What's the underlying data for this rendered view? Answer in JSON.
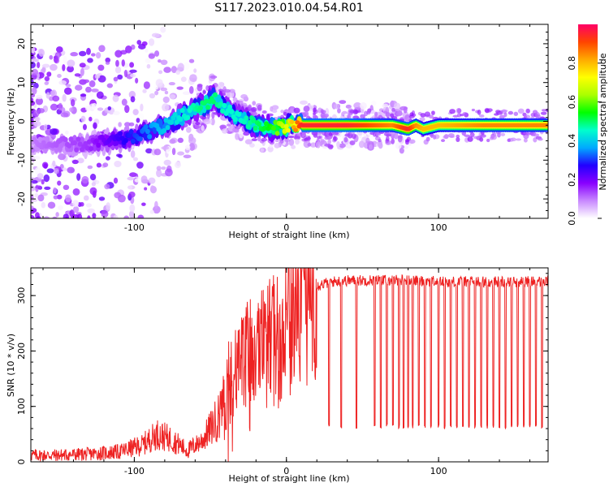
{
  "figure": {
    "title": "S117.2023.010.04.54.R01"
  },
  "chart_data": [
    {
      "type": "heatmap",
      "xlabel": "Height of straight line (km)",
      "ylabel": "Frequency (Hz)",
      "xlim": [
        -168,
        172
      ],
      "ylim": [
        -25,
        25
      ],
      "x_ticks": [
        "-100",
        "0",
        "100"
      ],
      "y_ticks": [
        "-20",
        "-10",
        "0",
        "10",
        "20"
      ],
      "colorbar": {
        "label": "Normalized spectral amplitude",
        "range": [
          0.0,
          1.0
        ],
        "ticks": [
          "0.0",
          "0.2",
          "0.4",
          "0.6",
          "0.8"
        ],
        "colors": [
          "#ffffff",
          "#c888ff",
          "#8800ff",
          "#2200ff",
          "#00aaff",
          "#00ffcc",
          "#00ff00",
          "#aaff00",
          "#ffff00",
          "#ffaa00",
          "#ff4400",
          "#ff0066"
        ]
      },
      "ridge": {
        "description_x": [
          -168,
          -130,
          -100,
          -80,
          -65,
          -55,
          -48,
          -40,
          -30,
          -20,
          -10,
          0,
          10,
          40,
          70,
          80,
          85,
          90,
          100,
          130,
          172
        ],
        "description_f": [
          -6,
          -6,
          -4,
          -1,
          2,
          4,
          6,
          3,
          1,
          -1,
          -2,
          -1,
          -1,
          -1,
          -1,
          -2,
          -1,
          -2,
          -1,
          -1,
          -1
        ],
        "peak_amplitude": [
          0.1,
          0.15,
          0.3,
          0.4,
          0.45,
          0.5,
          0.5,
          0.45,
          0.45,
          0.5,
          0.55,
          0.7,
          0.95,
          0.95,
          0.85,
          0.95,
          0.85,
          0.8,
          0.8,
          0.85,
          0.85
        ]
      }
    },
    {
      "type": "line",
      "xlabel": "Height of straight line (km)",
      "ylabel": "SNR (10 * v/v)",
      "xlim": [
        -168,
        172
      ],
      "ylim": [
        0,
        350
      ],
      "x_ticks": [
        "-100",
        "0",
        "100"
      ],
      "y_ticks": [
        "0",
        "100",
        "200",
        "300"
      ],
      "color": "#ee2222",
      "series": [
        {
          "x": [
            -168,
            -150,
            -130,
            -110,
            -95,
            -85,
            -75,
            -65,
            -55,
            -45,
            -40,
            -35,
            -30,
            -25,
            -20,
            -15,
            -10,
            -5,
            0,
            5,
            10,
            15,
            20,
            25,
            30,
            40,
            60,
            80,
            100,
            120,
            140,
            160,
            172
          ],
          "values": [
            12,
            12,
            14,
            18,
            30,
            50,
            40,
            20,
            40,
            80,
            120,
            150,
            170,
            190,
            200,
            210,
            215,
            235,
            250,
            270,
            295,
            310,
            318,
            322,
            325,
            327,
            328,
            328,
            325,
            325,
            325,
            325,
            325
          ]
        }
      ],
      "dropouts_x": [
        28,
        36,
        46,
        58,
        62,
        66,
        70,
        74,
        77,
        80,
        83,
        87,
        91,
        95,
        100,
        104,
        108,
        112,
        116,
        120,
        124,
        128,
        132,
        136,
        140,
        144,
        148,
        152,
        156,
        160,
        164,
        168
      ],
      "dropout_floor": 60
    }
  ]
}
